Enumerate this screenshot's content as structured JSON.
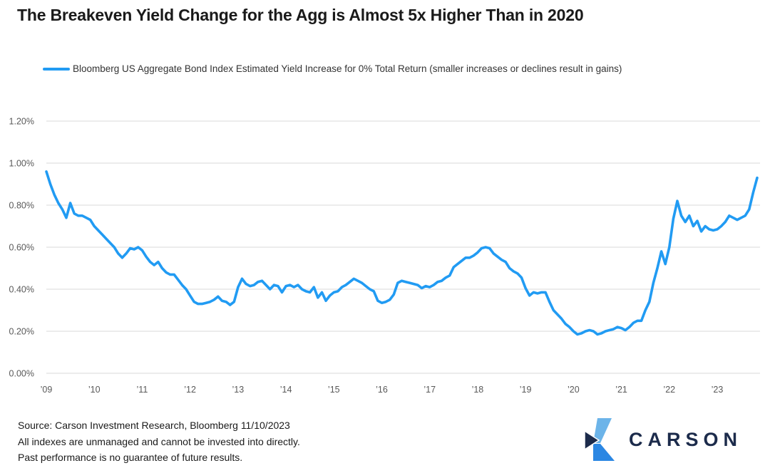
{
  "title": "The Breakeven Yield Change for the Agg is Almost 5x Higher Than in 2020",
  "legend": {
    "label": "Bloomberg US Aggregate Bond Index Estimated Yield Increase for 0% Total Return (smaller increases or declines result in gains)",
    "swatch_color": "#219BF3"
  },
  "chart_data": {
    "type": "line",
    "title": "The Breakeven Yield Change for the Agg is Almost 5x Higher Than in 2020",
    "xlabel": "",
    "ylabel": "",
    "ylim_pct": [
      0,
      1.2
    ],
    "y_tick_labels": [
      "0.00%",
      "0.20%",
      "0.40%",
      "0.60%",
      "0.80%",
      "1.00%",
      "1.20%"
    ],
    "x_tick_labels": [
      "’09",
      "’10",
      "’11",
      "’12",
      "’13",
      "’14",
      "’15",
      "’16",
      "’17",
      "’18",
      "’19",
      "’20",
      "’21",
      "’22",
      "’23"
    ],
    "x_frequency": "monthly",
    "x_range": "Jan 2009 - Nov 2023",
    "grid": "horizontal",
    "legend_position": "top-left",
    "axis_text_color": "#595959",
    "gridline_color": "#D9D9D9",
    "series": [
      {
        "name": "Bloomberg US Aggregate Bond Index Estimated Yield Increase for 0% Total Return (smaller increases or declines result in gains)",
        "color": "#219BF3",
        "values_pct": [
          0.96,
          0.9,
          0.85,
          0.81,
          0.78,
          0.74,
          0.81,
          0.76,
          0.75,
          0.75,
          0.74,
          0.73,
          0.7,
          0.68,
          0.66,
          0.64,
          0.62,
          0.6,
          0.57,
          0.55,
          0.57,
          0.595,
          0.59,
          0.6,
          0.585,
          0.555,
          0.53,
          0.515,
          0.53,
          0.5,
          0.48,
          0.47,
          0.47,
          0.445,
          0.42,
          0.4,
          0.37,
          0.34,
          0.33,
          0.33,
          0.335,
          0.34,
          0.35,
          0.365,
          0.345,
          0.34,
          0.325,
          0.34,
          0.41,
          0.45,
          0.425,
          0.415,
          0.42,
          0.435,
          0.44,
          0.42,
          0.4,
          0.42,
          0.415,
          0.385,
          0.415,
          0.42,
          0.41,
          0.42,
          0.4,
          0.39,
          0.385,
          0.41,
          0.36,
          0.385,
          0.345,
          0.37,
          0.385,
          0.39,
          0.41,
          0.42,
          0.435,
          0.45,
          0.44,
          0.43,
          0.415,
          0.4,
          0.39,
          0.345,
          0.335,
          0.34,
          0.35,
          0.375,
          0.43,
          0.44,
          0.435,
          0.43,
          0.425,
          0.42,
          0.405,
          0.415,
          0.41,
          0.42,
          0.435,
          0.44,
          0.455,
          0.465,
          0.505,
          0.52,
          0.535,
          0.55,
          0.55,
          0.56,
          0.575,
          0.595,
          0.6,
          0.595,
          0.57,
          0.555,
          0.54,
          0.53,
          0.5,
          0.485,
          0.475,
          0.455,
          0.405,
          0.37,
          0.385,
          0.38,
          0.385,
          0.385,
          0.34,
          0.3,
          0.28,
          0.26,
          0.235,
          0.22,
          0.2,
          0.185,
          0.19,
          0.2,
          0.205,
          0.2,
          0.185,
          0.19,
          0.2,
          0.205,
          0.21,
          0.22,
          0.215,
          0.205,
          0.22,
          0.24,
          0.25,
          0.25,
          0.3,
          0.34,
          0.43,
          0.5,
          0.58,
          0.52,
          0.6,
          0.735,
          0.82,
          0.75,
          0.72,
          0.75,
          0.7,
          0.725,
          0.675,
          0.7,
          0.685,
          0.68,
          0.685,
          0.7,
          0.72,
          0.75,
          0.74,
          0.73,
          0.74,
          0.75,
          0.78,
          0.86,
          0.93
        ]
      }
    ]
  },
  "footer": {
    "source_line": "Source: Carson Investment Research, Bloomberg 11/10/2023",
    "disclaimer_line1": "All indexes are unmanaged and cannot be invested into directly.",
    "disclaimer_line2": "Past performance is no guarantee of future results."
  },
  "logo": {
    "text": "CARSON",
    "navy": "#1C2B4B",
    "light_blue": "#6CB4E9",
    "mid_blue": "#2B87E3"
  }
}
